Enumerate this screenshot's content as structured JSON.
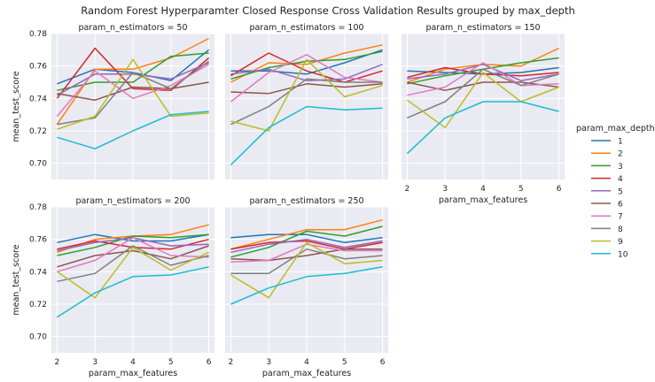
{
  "chart_data": {
    "type": "line",
    "title": "Random Forest Hyperparamter Closed Response Cross Validation Results grouped by max_depth",
    "xlabel": "param_max_features",
    "ylabel": "mean_test_score",
    "x": [
      2,
      3,
      4,
      5,
      6
    ],
    "x_ticks": [
      "2",
      "3",
      "4",
      "5",
      "6"
    ],
    "ylim": [
      0.69,
      0.78
    ],
    "y_ticks": [
      "0.70",
      "0.72",
      "0.74",
      "0.76",
      "0.78"
    ],
    "grid": true,
    "legend_title": "param_max_depth",
    "legend_position": "right",
    "series_names": [
      "1",
      "2",
      "3",
      "4",
      "5",
      "6",
      "7",
      "8",
      "9",
      "10"
    ],
    "colors": [
      "#1f77b4",
      "#ff7f0e",
      "#2ca02c",
      "#d62728",
      "#9467bd",
      "#8c564b",
      "#e377c2",
      "#7f7f7f",
      "#bcbd22",
      "#17becf"
    ],
    "panels": [
      {
        "title": "param_n_estimators = 50",
        "series": [
          {
            "name": "1",
            "values": [
              0.749,
              0.758,
              0.756,
              0.751,
              0.77
            ]
          },
          {
            "name": "2",
            "values": [
              0.724,
              0.758,
              0.758,
              0.765,
              0.777
            ]
          },
          {
            "name": "3",
            "values": [
              0.745,
              0.75,
              0.75,
              0.766,
              0.768
            ]
          },
          {
            "name": "4",
            "values": [
              0.74,
              0.771,
              0.746,
              0.745,
              0.765
            ]
          },
          {
            "name": "5",
            "values": [
              0.742,
              0.755,
              0.755,
              0.752,
              0.762
            ]
          },
          {
            "name": "6",
            "values": [
              0.743,
              0.739,
              0.747,
              0.746,
              0.75
            ]
          },
          {
            "name": "7",
            "values": [
              0.729,
              0.757,
              0.74,
              0.748,
              0.761
            ]
          },
          {
            "name": "8",
            "values": [
              0.724,
              0.728,
              0.756,
              0.746,
              0.763
            ]
          },
          {
            "name": "9",
            "values": [
              0.721,
              0.729,
              0.764,
              0.729,
              0.731
            ]
          },
          {
            "name": "10",
            "values": [
              0.716,
              0.709,
              0.72,
              0.73,
              0.732
            ]
          }
        ]
      },
      {
        "title": "param_n_estimators = 100",
        "series": [
          {
            "name": "1",
            "values": [
              0.757,
              0.757,
              0.755,
              0.762,
              0.77
            ]
          },
          {
            "name": "2",
            "values": [
              0.75,
              0.762,
              0.761,
              0.768,
              0.773
            ]
          },
          {
            "name": "3",
            "values": [
              0.752,
              0.759,
              0.763,
              0.764,
              0.769
            ]
          },
          {
            "name": "4",
            "values": [
              0.754,
              0.768,
              0.757,
              0.75,
              0.757
            ]
          },
          {
            "name": "5",
            "values": [
              0.755,
              0.758,
              0.751,
              0.752,
              0.761
            ]
          },
          {
            "name": "6",
            "values": [
              0.744,
              0.743,
              0.749,
              0.747,
              0.749
            ]
          },
          {
            "name": "7",
            "values": [
              0.738,
              0.756,
              0.767,
              0.753,
              0.75
            ]
          },
          {
            "name": "8",
            "values": [
              0.724,
              0.735,
              0.752,
              0.75,
              0.75
            ]
          },
          {
            "name": "9",
            "values": [
              0.726,
              0.72,
              0.764,
              0.741,
              0.748
            ]
          },
          {
            "name": "10",
            "values": [
              0.699,
              0.722,
              0.735,
              0.733,
              0.734
            ]
          }
        ]
      },
      {
        "title": "param_n_estimators = 150",
        "series": [
          {
            "name": "1",
            "values": [
              0.757,
              0.756,
              0.755,
              0.756,
              0.759
            ]
          },
          {
            "name": "2",
            "values": [
              0.75,
              0.758,
              0.761,
              0.76,
              0.771
            ]
          },
          {
            "name": "3",
            "values": [
              0.749,
              0.754,
              0.758,
              0.762,
              0.765
            ]
          },
          {
            "name": "4",
            "values": [
              0.753,
              0.759,
              0.755,
              0.754,
              0.756
            ]
          },
          {
            "name": "5",
            "values": [
              0.752,
              0.755,
              0.761,
              0.751,
              0.755
            ]
          },
          {
            "name": "6",
            "values": [
              0.75,
              0.745,
              0.75,
              0.75,
              0.747
            ]
          },
          {
            "name": "7",
            "values": [
              0.742,
              0.747,
              0.762,
              0.748,
              0.749
            ]
          },
          {
            "name": "8",
            "values": [
              0.728,
              0.738,
              0.758,
              0.748,
              0.755
            ]
          },
          {
            "name": "9",
            "values": [
              0.739,
              0.722,
              0.756,
              0.738,
              0.747
            ]
          },
          {
            "name": "10",
            "values": [
              0.706,
              0.728,
              0.738,
              0.738,
              0.732
            ]
          }
        ]
      },
      {
        "title": "param_n_estimators = 200",
        "series": [
          {
            "name": "1",
            "values": [
              0.758,
              0.763,
              0.759,
              0.759,
              0.763
            ]
          },
          {
            "name": "2",
            "values": [
              0.752,
              0.76,
              0.762,
              0.763,
              0.769
            ]
          },
          {
            "name": "3",
            "values": [
              0.75,
              0.755,
              0.762,
              0.761,
              0.763
            ]
          },
          {
            "name": "4",
            "values": [
              0.754,
              0.759,
              0.755,
              0.754,
              0.76
            ]
          },
          {
            "name": "5",
            "values": [
              0.753,
              0.758,
              0.761,
              0.756,
              0.757
            ]
          },
          {
            "name": "6",
            "values": [
              0.743,
              0.75,
              0.753,
              0.748,
              0.756
            ]
          },
          {
            "name": "7",
            "values": [
              0.74,
              0.747,
              0.761,
              0.75,
              0.749
            ]
          },
          {
            "name": "8",
            "values": [
              0.734,
              0.739,
              0.756,
              0.744,
              0.75
            ]
          },
          {
            "name": "9",
            "values": [
              0.74,
              0.724,
              0.755,
              0.741,
              0.752
            ]
          },
          {
            "name": "10",
            "values": [
              0.712,
              0.727,
              0.737,
              0.738,
              0.743
            ]
          }
        ]
      },
      {
        "title": "param_n_estimators = 250",
        "series": [
          {
            "name": "1",
            "values": [
              0.761,
              0.763,
              0.763,
              0.758,
              0.761
            ]
          },
          {
            "name": "2",
            "values": [
              0.754,
              0.76,
              0.766,
              0.766,
              0.772
            ]
          },
          {
            "name": "3",
            "values": [
              0.749,
              0.755,
              0.765,
              0.762,
              0.768
            ]
          },
          {
            "name": "4",
            "values": [
              0.754,
              0.758,
              0.759,
              0.754,
              0.758
            ]
          },
          {
            "name": "5",
            "values": [
              0.752,
              0.757,
              0.76,
              0.755,
              0.759
            ]
          },
          {
            "name": "6",
            "values": [
              0.748,
              0.747,
              0.75,
              0.754,
              0.754
            ]
          },
          {
            "name": "7",
            "values": [
              0.746,
              0.747,
              0.757,
              0.753,
              0.753
            ]
          },
          {
            "name": "8",
            "values": [
              0.739,
              0.739,
              0.754,
              0.748,
              0.75
            ]
          },
          {
            "name": "9",
            "values": [
              0.738,
              0.724,
              0.758,
              0.745,
              0.747
            ]
          },
          {
            "name": "10",
            "values": [
              0.72,
              0.73,
              0.737,
              0.739,
              0.743
            ]
          }
        ]
      }
    ]
  }
}
